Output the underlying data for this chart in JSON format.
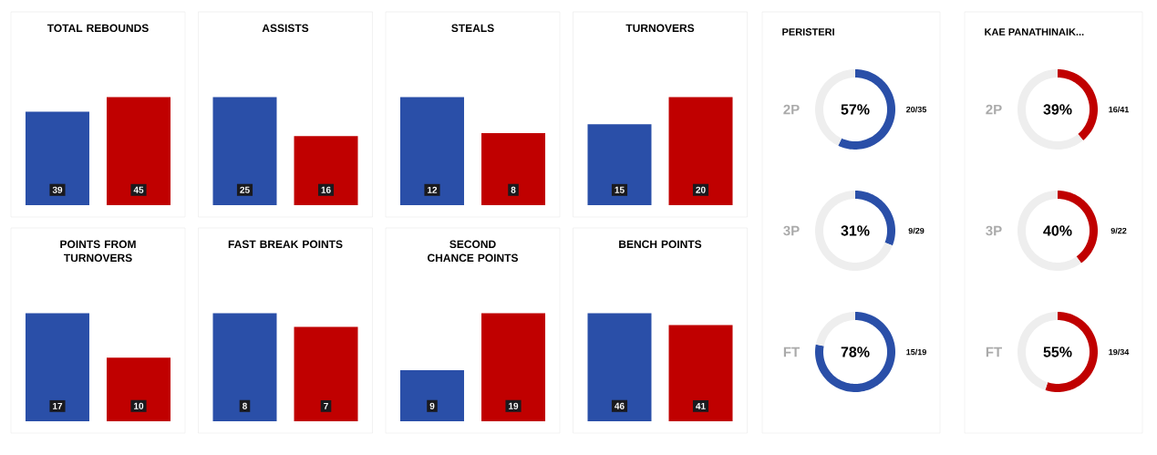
{
  "chart_data": [
    {
      "type": "bar",
      "title": "TOTAL REBOUNDS",
      "categories": [
        null,
        null
      ],
      "values": [
        39,
        45
      ],
      "colors": [
        "#2a4fa8",
        "#c00000"
      ],
      "data_labels": true,
      "tick_labels": false
    },
    {
      "type": "bar",
      "title": "ASSISTS",
      "categories": [
        null,
        null
      ],
      "values": [
        25,
        16
      ],
      "colors": [
        "#2a4fa8",
        "#c00000"
      ],
      "data_labels": true,
      "tick_labels": false
    },
    {
      "type": "bar",
      "title": "STEALS",
      "categories": [
        null,
        null
      ],
      "values": [
        12,
        8
      ],
      "colors": [
        "#2a4fa8",
        "#c00000"
      ],
      "data_labels": true,
      "tick_labels": false
    },
    {
      "type": "bar",
      "title": "TURNOVERS",
      "categories": [
        null,
        null
      ],
      "values": [
        15,
        20
      ],
      "colors": [
        "#2a4fa8",
        "#c00000"
      ],
      "data_labels": true,
      "tick_labels": false
    },
    {
      "type": "bar",
      "title": "POINTS FROM TURNOVERS",
      "categories": [
        null,
        null
      ],
      "values": [
        17,
        10
      ],
      "colors": [
        "#2a4fa8",
        "#c00000"
      ],
      "data_labels": true,
      "tick_labels": false
    },
    {
      "type": "bar",
      "title": "FAST BREAK POINTS",
      "categories": [
        null,
        null
      ],
      "values": [
        8,
        7
      ],
      "colors": [
        "#2a4fa8",
        "#c00000"
      ],
      "data_labels": true,
      "tick_labels": false
    },
    {
      "type": "bar",
      "title": "SECOND CHANCE POINTS",
      "categories": [
        null,
        null
      ],
      "values": [
        9,
        19
      ],
      "colors": [
        "#2a4fa8",
        "#c00000"
      ],
      "data_labels": true,
      "tick_labels": false
    },
    {
      "type": "bar",
      "title": "BENCH POINTS",
      "categories": [
        null,
        null
      ],
      "values": [
        46,
        41
      ],
      "colors": [
        "#2a4fa8",
        "#c00000"
      ],
      "data_labels": true,
      "tick_labels": false
    },
    {
      "type": "donut",
      "title": "PERISTERI",
      "ylabel": "2P",
      "categories": [
        null,
        null
      ],
      "values": [
        57,
        43
      ],
      "colors": [
        "#2a4fa8",
        "#eeeeee"
      ],
      "annotations": [
        "57%",
        "20/35"
      ]
    },
    {
      "type": "donut",
      "ylabel": "3P",
      "categories": [
        null,
        null
      ],
      "values": [
        31,
        69
      ],
      "colors": [
        "#2a4fa8",
        "#eeeeee"
      ],
      "annotations": [
        "31%",
        "9/29"
      ]
    },
    {
      "type": "donut",
      "ylabel": "FT",
      "categories": [
        null,
        null
      ],
      "values": [
        78,
        22
      ],
      "colors": [
        "#2a4fa8",
        "#eeeeee"
      ],
      "annotations": [
        "78%",
        "15/19"
      ]
    },
    {
      "type": "donut",
      "title": "KAE PANATHINAIK...",
      "ylabel": "2P",
      "categories": [
        null,
        null
      ],
      "values": [
        39,
        61
      ],
      "colors": [
        "#c00000",
        "#eeeeee"
      ],
      "annotations": [
        "39%",
        "16/41"
      ]
    },
    {
      "type": "donut",
      "ylabel": "3P",
      "categories": [
        null,
        null
      ],
      "values": [
        40,
        60
      ],
      "colors": [
        "#c00000",
        "#eeeeee"
      ],
      "annotations": [
        "40%",
        "9/22"
      ]
    },
    {
      "type": "donut",
      "ylabel": "FT",
      "categories": [
        null,
        null
      ],
      "values": [
        55,
        45
      ],
      "colors": [
        "#c00000",
        "#eeeeee"
      ],
      "annotations": [
        "55%",
        "19/34"
      ]
    }
  ]
}
